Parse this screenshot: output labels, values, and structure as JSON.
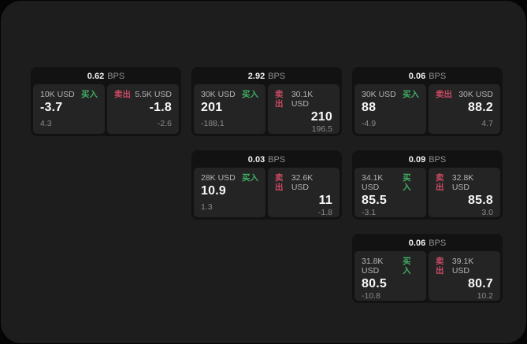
{
  "theme": {
    "bg": "#050505",
    "panel_bg": "#1d1d1d",
    "card_bg": "#121212",
    "tile_bg": "#242424",
    "green": "#3fae63",
    "red": "#ca4a64"
  },
  "labels": {
    "bps_unit": "BPS",
    "buy": "买入",
    "sell": "卖出"
  },
  "cards": [
    {
      "bps": "0.62",
      "buy": {
        "amount": "10K USD",
        "value": "-3.7",
        "sub": "4.3"
      },
      "sell": {
        "amount": "5.5K USD",
        "value": "-1.8",
        "sub": "-2.6"
      }
    },
    {
      "bps": "2.92",
      "buy": {
        "amount": "30K USD",
        "value": "201",
        "sub": "-188.1"
      },
      "sell": {
        "amount": "30.1K USD",
        "value": "210",
        "sub": "196.5"
      }
    },
    {
      "bps": "0.06",
      "buy": {
        "amount": "30K USD",
        "value": "88",
        "sub": "-4.9"
      },
      "sell": {
        "amount": "30K USD",
        "value": "88.2",
        "sub": "4.7"
      }
    },
    {
      "bps": "0.03",
      "buy": {
        "amount": "28K USD",
        "value": "10.9",
        "sub": "1.3"
      },
      "sell": {
        "amount": "32.6K USD",
        "value": "11",
        "sub": "-1.8"
      }
    },
    {
      "bps": "0.09",
      "buy": {
        "amount": "34.1K USD",
        "value": "85.5",
        "sub": "-3.1"
      },
      "sell": {
        "amount": "32.8K USD",
        "value": "85.8",
        "sub": "3.0"
      }
    },
    {
      "bps": "0.06",
      "buy": {
        "amount": "31.8K USD",
        "value": "80.5",
        "sub": "-10.8"
      },
      "sell": {
        "amount": "39.1K USD",
        "value": "80.7",
        "sub": "10.2"
      }
    }
  ]
}
